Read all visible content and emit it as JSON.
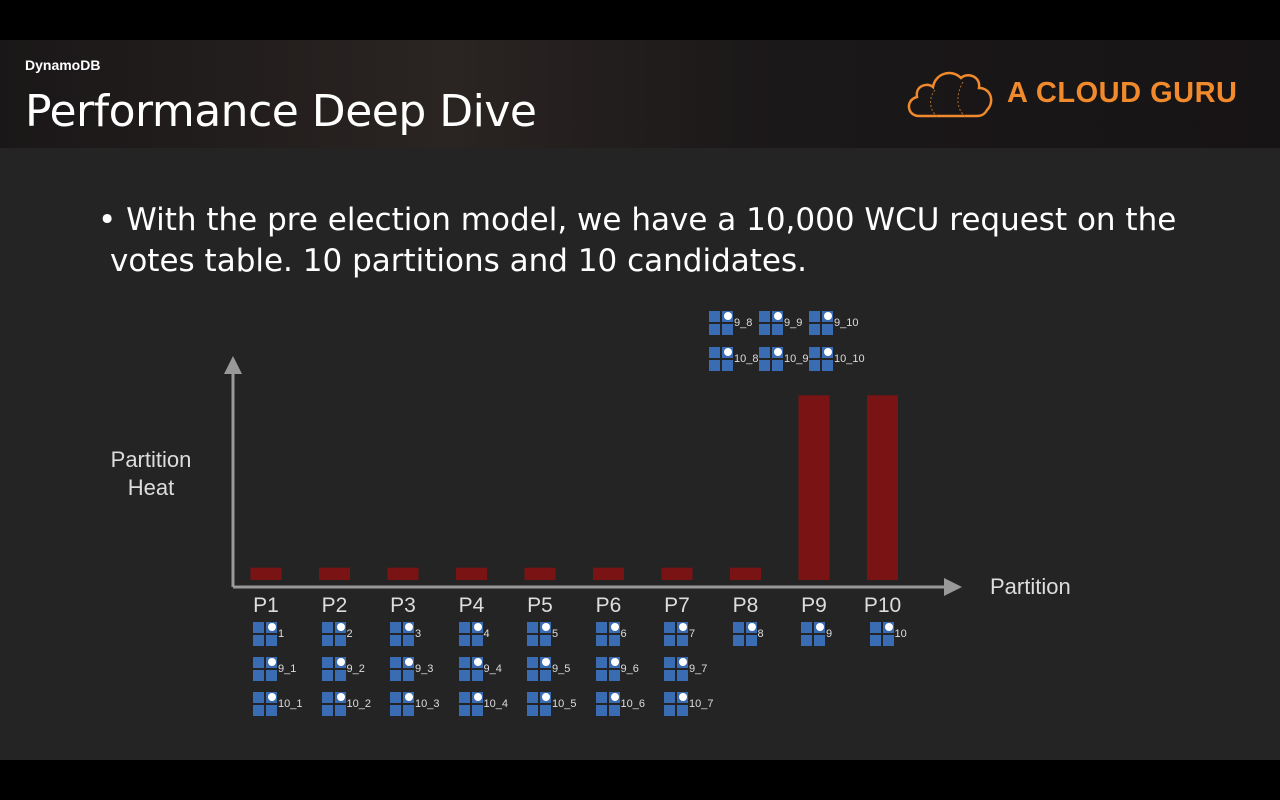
{
  "header": {
    "section": "DynamoDB",
    "title": "Performance Deep Dive",
    "logo_text": "A CLOUD GURU"
  },
  "bullet": "• With the pre election model, we have a 10,000 WCU request on the votes table. 10 partitions and 10 candidates.",
  "colors": {
    "bar": "#7a1414",
    "accent": "#f08a2c",
    "token": "#3a6cb4"
  },
  "chart_data": {
    "type": "bar",
    "ylabel": "Partition Heat",
    "xlabel": "Partition",
    "categories": [
      "P1",
      "P2",
      "P3",
      "P4",
      "P5",
      "P6",
      "P7",
      "P8",
      "P9",
      "P10"
    ],
    "values": [
      1,
      1,
      1,
      1,
      1,
      1,
      1,
      1,
      15,
      15
    ],
    "ylim": [
      0,
      16
    ],
    "grid": false,
    "tokens": [
      [
        "1",
        "9_1",
        "10_1"
      ],
      [
        "2",
        "9_2",
        "10_2"
      ],
      [
        "3",
        "9_3",
        "10_3"
      ],
      [
        "4",
        "9_4",
        "10_4"
      ],
      [
        "5",
        "9_5",
        "10_5"
      ],
      [
        "6",
        "9_6",
        "10_6"
      ],
      [
        "7",
        "9_7",
        "10_7"
      ],
      [
        "8"
      ],
      [
        "9"
      ],
      [
        "10"
      ]
    ],
    "overflow_tokens": [
      [
        "9_8",
        "9_9",
        "9_10"
      ],
      [
        "10_8",
        "10_9",
        "10_10"
      ]
    ]
  }
}
